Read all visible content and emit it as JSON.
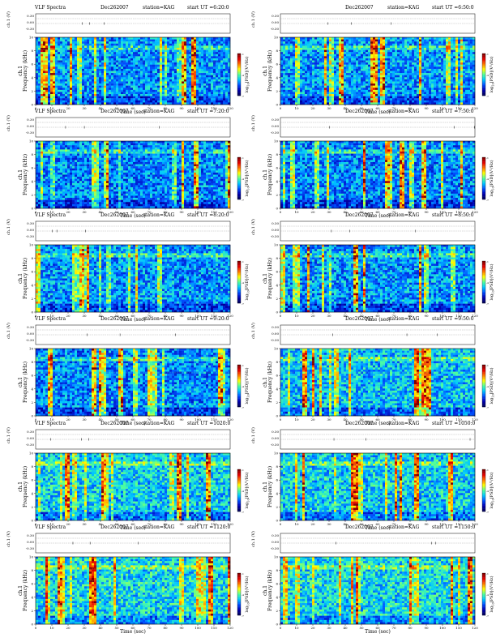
{
  "chart_data": {
    "type": "heatmap",
    "colormap": [
      "#00005a",
      "#0000b4",
      "#0050ff",
      "#00c8ff",
      "#50ff9a",
      "#ffff00",
      "#ff7800",
      "#e60000",
      "#800000"
    ],
    "panels": [
      {
        "left": "VLF Spectra",
        "date": "Dec262007",
        "station": "station=KAG",
        "start": "start  UT  =6:20:0",
        "seed": 11,
        "intensity": 0.32
      },
      {
        "left": "",
        "date": "Dec262007",
        "station": "station=KAG",
        "start": "start  UT  =6:50:0",
        "seed": 23,
        "intensity": 0.34
      },
      {
        "left": "VLF Spectra",
        "date": "Dec262007",
        "station": "station=KAG",
        "start": "start  UT  =7:20:0",
        "seed": 37,
        "intensity": 0.3
      },
      {
        "left": "",
        "date": "Dec262007",
        "station": "station=KAG",
        "start": "start  UT  =7:50:0",
        "seed": 41,
        "intensity": 0.3
      },
      {
        "left": "VLF Spectra",
        "date": "Dec262007",
        "station": "station=KAG",
        "start": "start  UT  =8:20:0",
        "seed": 53,
        "intensity": 0.33
      },
      {
        "left": "",
        "date": "Dec262007",
        "station": "station=KAG",
        "start": "start  UT  =8:50:0",
        "seed": 67,
        "intensity": 0.33
      },
      {
        "left": "VLF Spectra",
        "date": "Dec262007",
        "station": "station=KAG",
        "start": "start  UT  =9:20:0",
        "seed": 71,
        "intensity": 0.3
      },
      {
        "left": "",
        "date": "Dec262007",
        "station": "station=KAG",
        "start": "start  UT  =9:50:0",
        "seed": 83,
        "intensity": 0.42
      },
      {
        "left": "VLF Spectra",
        "date": "Dec262007",
        "station": "station=KAG",
        "start": "start  UT  =1020:0",
        "seed": 97,
        "intensity": 0.45
      },
      {
        "left": "",
        "date": "Dec262007",
        "station": "station=KAG",
        "start": "start  UT  =1050:0",
        "seed": 101,
        "intensity": 0.45
      },
      {
        "left": "VLF Spectra",
        "date": "Dec262007",
        "station": "station=KAG",
        "start": "start  UT  =1120:0",
        "seed": 113,
        "intensity": 0.48
      },
      {
        "left": "",
        "date": "Dec262007",
        "station": "station=KAG",
        "start": "start  UT  =1150:0",
        "seed": 127,
        "intensity": 0.48
      }
    ],
    "ch1_label": "ch.1 (V)",
    "ch1_ticks": [
      "0.30",
      "0.00",
      "-0.30"
    ],
    "ylabel": "ch.1\nFrequency  (kHz)",
    "ylabel_line1": "ch.1",
    "ylabel_line2": "Frequency  (kHz)",
    "y_ticks": [
      0,
      2,
      4,
      6,
      8,
      10
    ],
    "ylim": [
      0,
      10
    ],
    "xlabel": "Time  (sec)",
    "x_ticks": [
      0,
      10,
      20,
      30,
      40,
      50,
      60,
      70,
      80,
      90,
      100,
      110,
      120
    ],
    "xlim": [
      0,
      120
    ],
    "colorbar_label": "log10[PSD](V2/Hz)",
    "colorbar_label_main": "log",
    "colorbar_label_sub": "10",
    "colorbar_label_rest": "[PSD](V²/Hz)",
    "colorbar_ticks": [
      "-1",
      "-4",
      "-7"
    ]
  }
}
